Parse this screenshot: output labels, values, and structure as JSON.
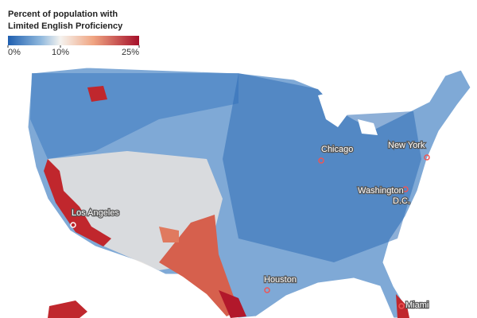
{
  "legend": {
    "title_lines": [
      "Percent of population with",
      "Limited English Proficiency"
    ],
    "lim": [
      0,
      25
    ],
    "ticks": [
      {
        "value": 0,
        "label": "0%"
      },
      {
        "value": 10,
        "label": "10%"
      },
      {
        "value": 25,
        "label": "25%"
      }
    ]
  },
  "cities": [
    {
      "label_lines": [
        "Chicago"
      ]
    },
    {
      "label_lines": [
        "New York"
      ]
    },
    {
      "label_lines": [
        "Washington",
        "D.C."
      ]
    },
    {
      "label_lines": [
        "Los Angeles"
      ]
    },
    {
      "label_lines": [
        "Houston"
      ]
    },
    {
      "label_lines": [
        "Miami"
      ]
    }
  ]
}
